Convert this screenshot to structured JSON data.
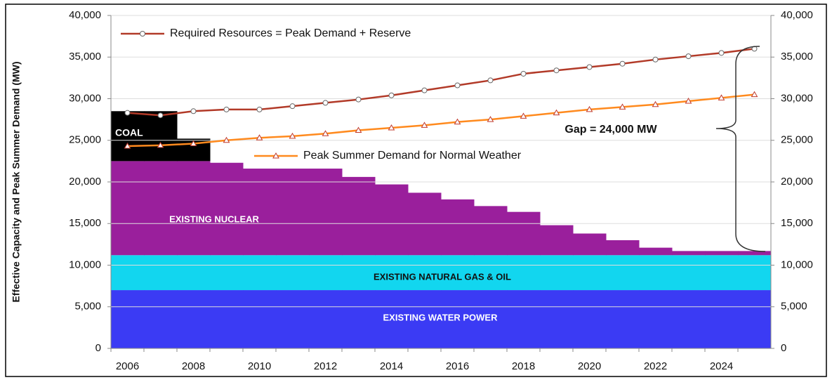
{
  "chart_data": {
    "type": "bar",
    "stacked": true,
    "y_label": "Effective Capacity and Peak Summer Demand (MW)",
    "categories": [
      "2006",
      null,
      "2008",
      null,
      "2010",
      null,
      "2012",
      null,
      "2014",
      null,
      "2016",
      null,
      "2018",
      null,
      "2020",
      null,
      "2022",
      null,
      "2024",
      null
    ],
    "series": [
      {
        "name": "EXISTING  WATER POWER",
        "type": "bar",
        "color": "#3b3bf4",
        "values": [
          7000,
          7000,
          7000,
          7000,
          7000,
          7000,
          7000,
          7000,
          7000,
          7000,
          7000,
          7000,
          7000,
          7000,
          7000,
          7000,
          7000,
          7000,
          7000,
          7000
        ]
      },
      {
        "name": "EXISTING NATURAL GAS & OIL",
        "type": "bar",
        "color": "#12d6ef",
        "values": [
          4200,
          4200,
          4200,
          4200,
          4200,
          4200,
          4200,
          4200,
          4200,
          4200,
          4200,
          4200,
          4200,
          4200,
          4200,
          4200,
          4200,
          4200,
          4200,
          4200
        ]
      },
      {
        "name": "EXISTING NUCLEAR",
        "type": "bar",
        "color": "#9a1f9c",
        "values": [
          11300,
          11300,
          11300,
          11100,
          10400,
          10400,
          10400,
          9400,
          8500,
          7500,
          6700,
          5900,
          5200,
          3600,
          2600,
          1800,
          900,
          500,
          500,
          500
        ]
      },
      {
        "name": "COAL",
        "type": "bar",
        "color": "#000000",
        "values": [
          6000,
          6000,
          2700,
          0,
          0,
          0,
          0,
          0,
          0,
          0,
          0,
          0,
          0,
          0,
          0,
          0,
          0,
          0,
          0,
          0
        ]
      },
      {
        "name": "Required Resources = Peak Demand + Reserve",
        "type": "line",
        "marker": "circle",
        "color": "#b23a28",
        "values": [
          28300,
          28000,
          28500,
          28700,
          28700,
          29100,
          29500,
          29900,
          30400,
          31000,
          31600,
          32200,
          33000,
          33400,
          33800,
          34200,
          34700,
          35100,
          35500,
          36000
        ]
      },
      {
        "name": "Peak Summer Demand for Normal Weather",
        "type": "line",
        "marker": "triangle",
        "color": "#ff8a1e",
        "values": [
          24300,
          24400,
          24600,
          25000,
          25300,
          25500,
          25800,
          26200,
          26500,
          26800,
          27200,
          27500,
          27900,
          28300,
          28700,
          29000,
          29300,
          29700,
          30100,
          30500
        ]
      }
    ],
    "annotation": "Gap = 24,000 MW",
    "ylim": [
      0,
      40000
    ],
    "yticks": [
      0,
      {
        "value": 5000,
        "label": "5,000"
      },
      {
        "value": 10000,
        "label": "10,000"
      },
      {
        "value": 15000,
        "label": "15,000"
      },
      {
        "value": 20000,
        "label": "20,000"
      },
      {
        "value": 25000,
        "label": "25,000"
      },
      {
        "value": 30000,
        "label": "30,000"
      },
      {
        "value": 35000,
        "label": "35,000"
      },
      {
        "value": 40000,
        "label": "40,000"
      }
    ],
    "y2lim": [
      0,
      40000
    ],
    "y2ticks": [
      0,
      {
        "value": 5000,
        "label": "5,000"
      },
      {
        "value": 10000,
        "label": "10,000"
      },
      {
        "value": 15000,
        "label": "15,000"
      },
      {
        "value": 20000,
        "label": "20,000"
      },
      {
        "value": 25000,
        "label": "25,000"
      },
      {
        "value": 30000,
        "label": "30,000"
      },
      {
        "value": 35000,
        "label": "35,000"
      },
      {
        "value": 40000,
        "label": "40,000"
      }
    ],
    "grid": true
  }
}
